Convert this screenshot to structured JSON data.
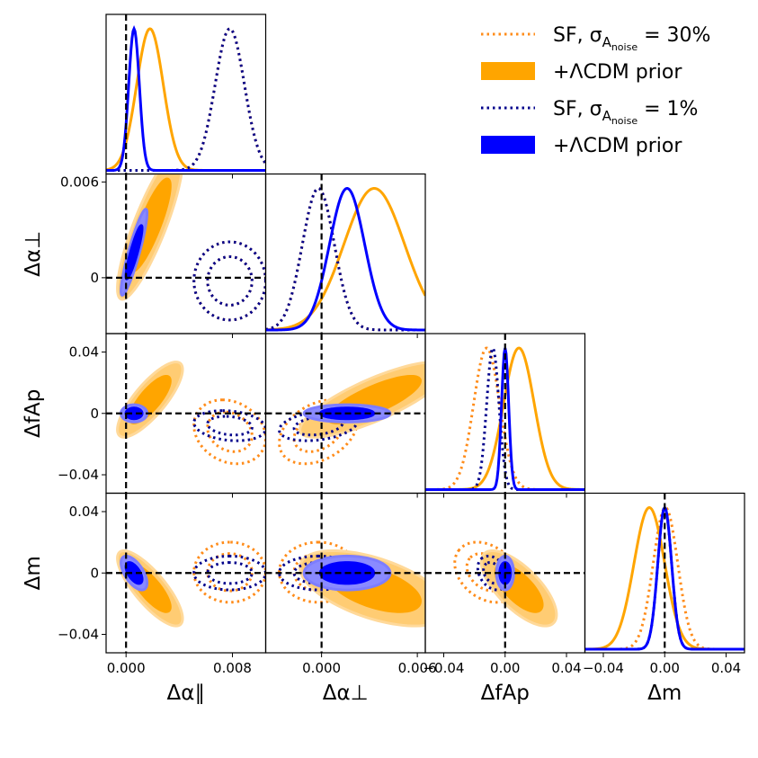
{
  "colors": {
    "orange": "#ffa500",
    "blue": "#0000ff",
    "navy": "#00008b",
    "black": "#000000"
  },
  "legend": [
    {
      "label": "SF, σ",
      "sub": "A",
      "subsub": "noise",
      "suffix": " = 30%",
      "style": "dotted",
      "color": "#ff8c1a"
    },
    {
      "label": "+ΛCDM prior",
      "style": "filled",
      "color": "#ffa500"
    },
    {
      "label": "SF, σ",
      "sub": "A",
      "subsub": "noise",
      "suffix": " = 1%",
      "style": "dotted",
      "color": "#00008b"
    },
    {
      "label": "+ΛCDM prior",
      "style": "filled",
      "color": "#0000ff"
    }
  ],
  "chart_data": {
    "type": "corner",
    "parameters": [
      "Δα∥",
      "Δα⊥",
      "ΔfAp",
      "Δm"
    ],
    "axis_labels": {
      "x": [
        "Δα∥",
        "Δα⊥",
        "ΔfAp",
        "Δm"
      ],
      "y": [
        "",
        "Δα⊥",
        "ΔfAp",
        "Δm"
      ]
    },
    "ranges": [
      [
        -0.0015,
        0.0105
      ],
      [
        -0.0035,
        0.0065
      ],
      [
        -0.052,
        0.052
      ],
      [
        -0.052,
        0.052
      ]
    ],
    "truth": [
      0,
      0,
      0,
      0
    ],
    "ticks": {
      "x": [
        [
          0.0,
          0.008
        ],
        [
          0.0,
          0.006
        ],
        [
          -0.04,
          0.0,
          0.04
        ],
        [
          -0.04,
          0.0,
          0.04
        ]
      ],
      "x_labels": [
        [
          "0.000",
          "0.008"
        ],
        [
          "0.000",
          "0.006"
        ],
        [
          "−0.04",
          "0.00",
          "0.04"
        ],
        [
          "−0.04",
          "0.00",
          "0.04"
        ]
      ],
      "y": [
        [],
        [
          0.0,
          0.006
        ],
        [
          -0.04,
          0.0,
          0.04
        ],
        [
          -0.04,
          0.0,
          0.04
        ]
      ],
      "y_labels": [
        [],
        [
          "0",
          "0.006"
        ],
        [
          "−0.04",
          "0",
          "0.04"
        ],
        [
          "−0.04",
          "0",
          "0.04"
        ]
      ]
    },
    "series": [
      {
        "name": "SF, σA_noise = 30%",
        "style": "dotted",
        "color": "#ff8c1a",
        "mean": [
          0.0078,
          -0.0002,
          -0.012,
          0.0005
        ],
        "sigma": [
          0.0011,
          0.001,
          0.0085,
          0.008
        ],
        "corr": {
          "1-0": 0.0,
          "2-0": -0.2,
          "2-1": 0.35,
          "3-0": 0.0,
          "3-1": 0.0,
          "3-2": -0.3
        }
      },
      {
        "name": "SF, σA_noise = 30% +ΛCDM prior",
        "style": "filled",
        "color": "#ffa500",
        "mean": [
          0.0018,
          0.0033,
          0.009,
          -0.01
        ],
        "sigma": [
          0.001,
          0.0019,
          0.01,
          0.01
        ],
        "corr": {
          "1-0": 0.85,
          "2-0": 0.8,
          "2-1": 0.8,
          "3-0": -0.8,
          "3-1": -0.55,
          "3-2": -0.7
        }
      },
      {
        "name": "SF, σA_noise = 1%",
        "style": "dotted",
        "color": "#00008b",
        "mean": [
          0.0078,
          -0.0002,
          -0.008,
          0.0
        ],
        "sigma": [
          0.0011,
          0.001,
          0.004,
          0.0045
        ],
        "corr": {
          "1-0": 0.0,
          "2-0": -0.2,
          "2-1": 0.3,
          "3-0": 0.0,
          "3-1": 0.0,
          "3-2": -0.3
        }
      },
      {
        "name": "SF, σA_noise = 1% +ΛCDM prior",
        "style": "filled",
        "color": "#0000ff",
        "mean": [
          0.0006,
          0.0016,
          0.0,
          0.0
        ],
        "sigma": [
          0.0004,
          0.0011,
          0.0023,
          0.0045
        ],
        "corr": {
          "1-0": 0.9,
          "2-0": 0.0,
          "2-1": 0.0,
          "3-0": -0.6,
          "3-1": 0.0,
          "3-2": 0.0
        }
      }
    ]
  }
}
